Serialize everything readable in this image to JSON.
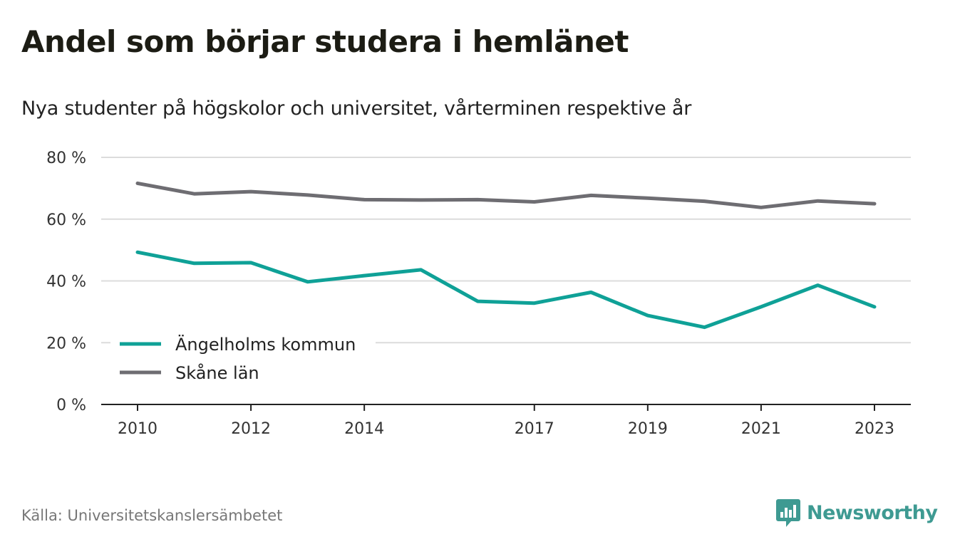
{
  "title": "Andel som börjar studera i hemlänet",
  "subtitle": "Nya studenter på högskolor och universitet, vårterminen respektive år",
  "source": "Källa: Universitetskanslersämbetet",
  "brand": {
    "name": "Newsworthy",
    "icon": "chart-bubble-icon",
    "color": "#3e9a92"
  },
  "chart_data": {
    "type": "line",
    "x": [
      2010,
      2011,
      2012,
      2013,
      2014,
      2015,
      2016,
      2017,
      2018,
      2019,
      2020,
      2021,
      2022,
      2023
    ],
    "x_ticks": [
      "2010",
      "2012",
      "2014",
      "2017",
      "2019",
      "2021",
      "2023"
    ],
    "y_ticks": [
      "0 %",
      "20 %",
      "40 %",
      "60 %",
      "80 %"
    ],
    "ylim": [
      0,
      80
    ],
    "grid": true,
    "legend_position": "bottom-left",
    "series": [
      {
        "name": "Ängelholms kommun",
        "color": "#0fa197",
        "values": [
          49.3,
          45.7,
          45.9,
          39.7,
          41.7,
          43.6,
          33.4,
          32.8,
          36.3,
          28.8,
          25.0,
          31.6,
          38.6,
          31.6
        ]
      },
      {
        "name": "Skåne län",
        "color": "#6e6d72",
        "values": [
          71.6,
          68.2,
          68.9,
          67.8,
          66.3,
          66.2,
          66.3,
          65.6,
          67.7,
          66.8,
          65.8,
          63.8,
          65.9,
          65.0
        ]
      }
    ]
  }
}
